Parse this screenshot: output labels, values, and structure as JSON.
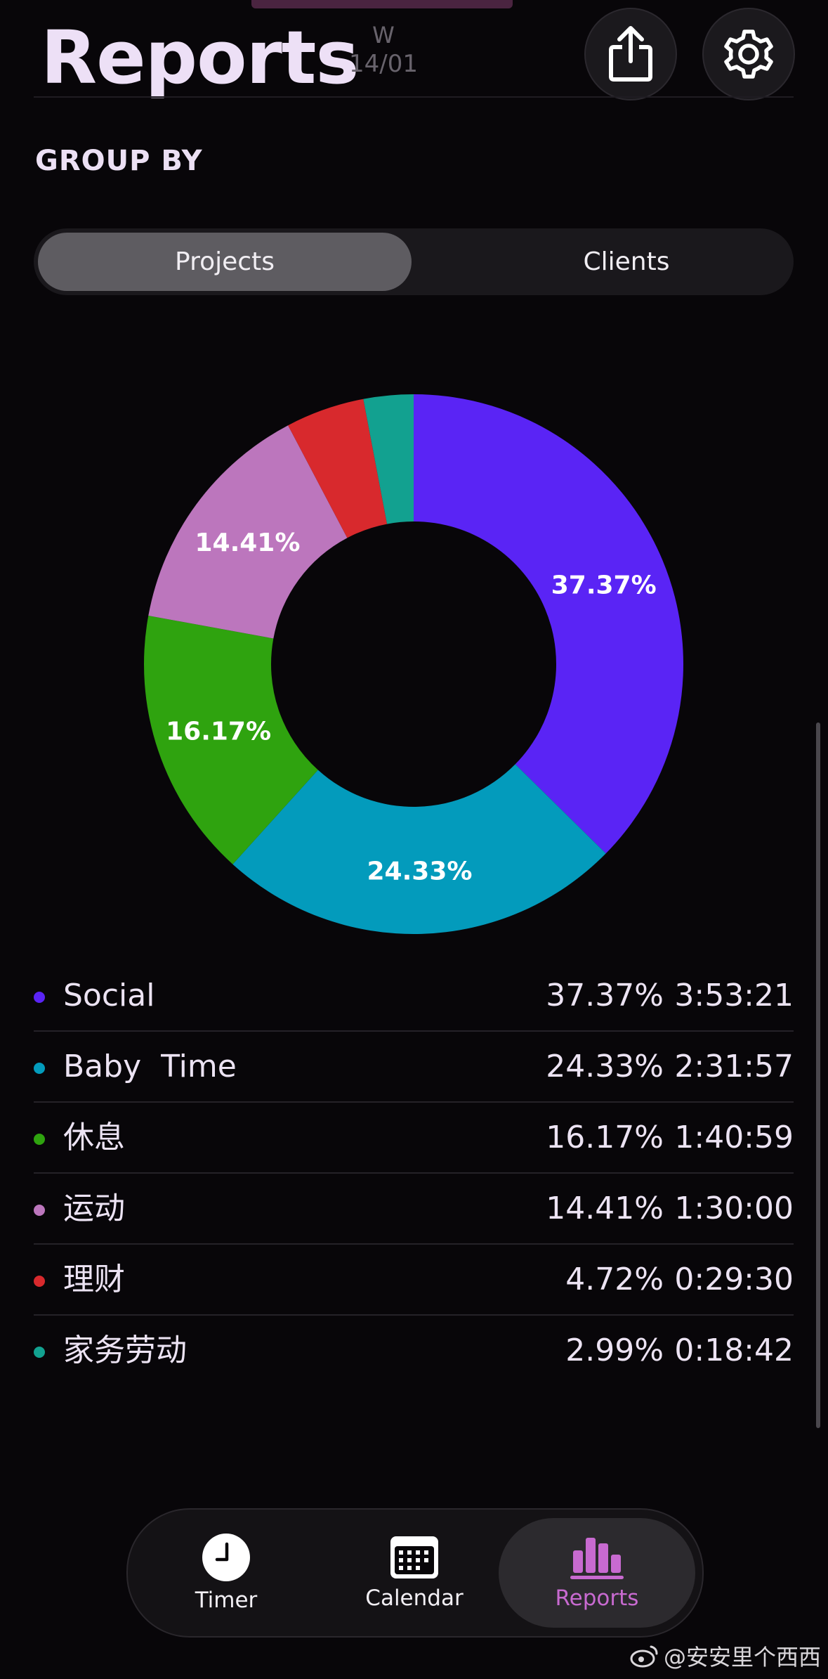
{
  "header": {
    "title": "Reports",
    "week_label": "W",
    "week_date": "14/01"
  },
  "icons": {
    "share": "share-icon",
    "settings": "gear-icon"
  },
  "group_by": {
    "label": "GROUP BY",
    "options": [
      "Projects",
      "Clients"
    ],
    "selected": "Projects"
  },
  "chart_data": {
    "type": "pie",
    "donut": true,
    "slices": [
      {
        "label": "Social",
        "value": 37.37,
        "color": "#5a24f5"
      },
      {
        "label": "Baby  Time",
        "value": 24.33,
        "color": "#039bbc"
      },
      {
        "label": "休息",
        "value": 16.17,
        "color": "#2fa30f"
      },
      {
        "label": "运动",
        "value": 14.41,
        "color": "#bc76bd"
      },
      {
        "label": "理财",
        "value": 4.72,
        "color": "#d8292d"
      },
      {
        "label": "家务劳动",
        "value": 2.99,
        "color": "#12a190"
      }
    ],
    "data_labels": [
      "37.37%",
      "24.33%",
      "16.17%",
      "14.41%"
    ]
  },
  "legend": [
    {
      "name": "Social",
      "percent": "37.37%",
      "time": "3:53:21",
      "color": "#5a24f5"
    },
    {
      "name": "Baby  Time",
      "percent": "24.33%",
      "time": "2:31:57",
      "color": "#039bbc"
    },
    {
      "name": "休息",
      "percent": "16.17%",
      "time": "1:40:59",
      "color": "#2fa30f"
    },
    {
      "name": "运动",
      "percent": "14.41%",
      "time": "1:30:00",
      "color": "#bc76bd"
    },
    {
      "name": "理财",
      "percent": "4.72%",
      "time": "0:29:30",
      "color": "#d8292d"
    },
    {
      "name": "家务劳动",
      "percent": "2.99%",
      "time": "0:18:42",
      "color": "#12a190"
    }
  ],
  "tabs": [
    {
      "label": "Timer",
      "icon": "clock-icon"
    },
    {
      "label": "Calendar",
      "icon": "calendar-icon"
    },
    {
      "label": "Reports",
      "icon": "bar-chart-icon",
      "active": true
    }
  ],
  "watermark": "@安安里个西西",
  "colors": {
    "accent": "#c86ad0",
    "background": "#080609",
    "title": "#ede0f6"
  }
}
